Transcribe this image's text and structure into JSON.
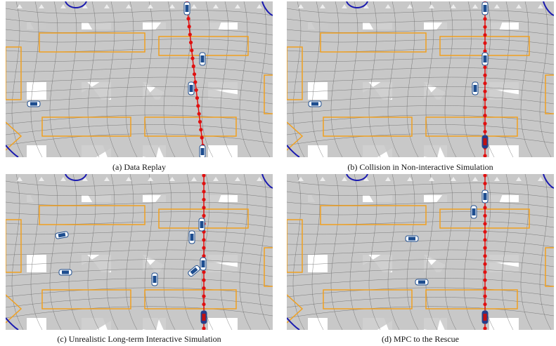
{
  "figure": {
    "panels": [
      {
        "caption": "(a) Data Replay"
      },
      {
        "caption": "(b) Collision in Non-interactive Simulation"
      },
      {
        "caption": "(c) Unrealistic Long-term Interactive Simulation"
      },
      {
        "caption": "(d) MPC to the Rescue"
      }
    ]
  }
}
